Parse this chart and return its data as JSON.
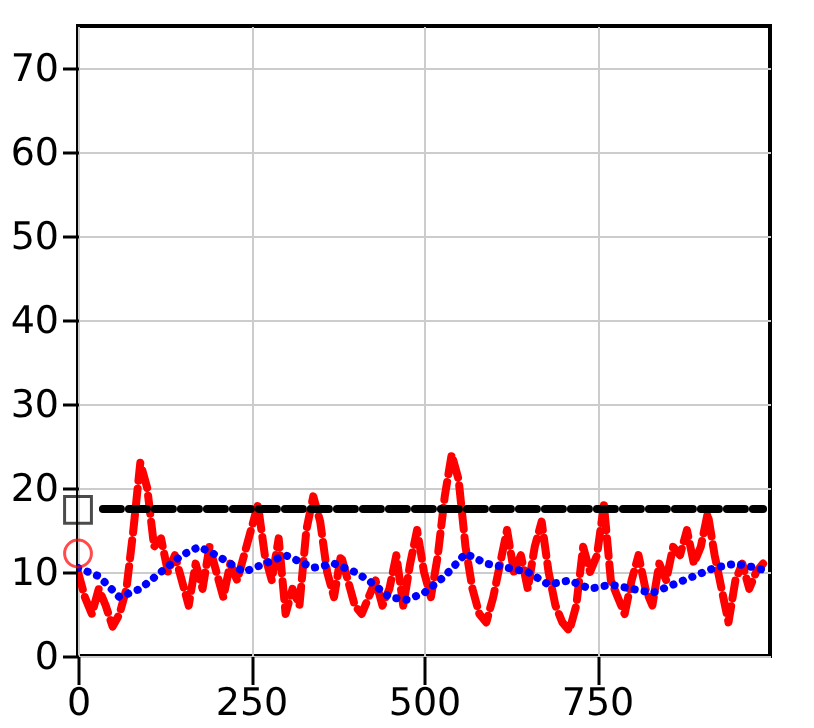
{
  "chart_data": {
    "type": "line",
    "xlim": [
      0,
      1000
    ],
    "ylim": [
      0,
      75
    ],
    "xticks": [
      0,
      250,
      500,
      750
    ],
    "yticks": [
      0,
      10,
      20,
      30,
      40,
      50,
      60,
      70
    ],
    "grid": true,
    "series": [
      {
        "color": "#ff0000",
        "line_style": "dashed",
        "x": [
          0,
          10,
          20,
          30,
          40,
          50,
          60,
          70,
          80,
          90,
          100,
          110,
          120,
          130,
          140,
          150,
          160,
          170,
          180,
          190,
          200,
          210,
          220,
          230,
          240,
          250,
          260,
          270,
          280,
          290,
          300,
          310,
          320,
          330,
          340,
          350,
          360,
          370,
          380,
          390,
          400,
          410,
          420,
          430,
          440,
          450,
          460,
          470,
          480,
          490,
          500,
          510,
          520,
          530,
          540,
          550,
          560,
          570,
          580,
          590,
          600,
          610,
          620,
          630,
          640,
          650,
          660,
          670,
          680,
          690,
          700,
          710,
          720,
          730,
          740,
          750,
          760,
          770,
          780,
          790,
          800,
          810,
          820,
          830,
          840,
          850,
          860,
          870,
          880,
          890,
          900,
          910,
          920,
          930,
          940,
          950,
          960,
          970,
          980,
          990
        ],
        "values": [
          10,
          7,
          5,
          8,
          6,
          3.5,
          5,
          8,
          15,
          23,
          20,
          13,
          14,
          10,
          12,
          9,
          6,
          11,
          8,
          13,
          10,
          7,
          11,
          9,
          12,
          15,
          18,
          12,
          9,
          14,
          5,
          8,
          6,
          15,
          19,
          16,
          10,
          7,
          12,
          9,
          6,
          5,
          7,
          9,
          6,
          8,
          12,
          6,
          11,
          15,
          10,
          7,
          12,
          19,
          24,
          21,
          13,
          8,
          5,
          4,
          7,
          11,
          15,
          10,
          12,
          8,
          13,
          16,
          10,
          6,
          4,
          3,
          6,
          13,
          10,
          12,
          18,
          9,
          7,
          5,
          9,
          12,
          8,
          6,
          11,
          9,
          13,
          12,
          15,
          11,
          13,
          17,
          12,
          8,
          4,
          9,
          11,
          8,
          10,
          11
        ]
      },
      {
        "color": "#0000ff",
        "line_style": "dotted",
        "x": [
          0,
          30,
          60,
          90,
          120,
          150,
          175,
          200,
          240,
          270,
          300,
          340,
          370,
          400,
          420,
          450,
          475,
          500,
          530,
          560,
          590,
          620,
          650,
          680,
          710,
          740,
          770,
          800,
          830,
          860,
          890,
          920,
          950,
          980,
          1000
        ],
        "values": [
          10.5,
          9.5,
          7,
          8,
          10,
          12,
          13,
          12,
          10,
          11,
          12,
          10.5,
          11,
          10,
          9,
          7,
          6.7,
          7.5,
          9.5,
          12.2,
          11,
          10.5,
          10,
          8.5,
          9,
          8,
          8.5,
          8,
          7.5,
          8.5,
          9.5,
          10.5,
          11,
          10.5,
          10
        ]
      },
      {
        "color": "#000000",
        "line_style": "dashed",
        "x": [
          36,
          990
        ],
        "values": [
          17.5,
          17.5
        ]
      },
      {
        "type": "scatter",
        "marker": "circle",
        "color": "#ff0000",
        "x": [
          0
        ],
        "values": [
          12.2
        ]
      },
      {
        "type": "scatter",
        "marker": "square",
        "color": "#000000",
        "x": [
          0
        ],
        "values": [
          17.4
        ]
      }
    ]
  }
}
